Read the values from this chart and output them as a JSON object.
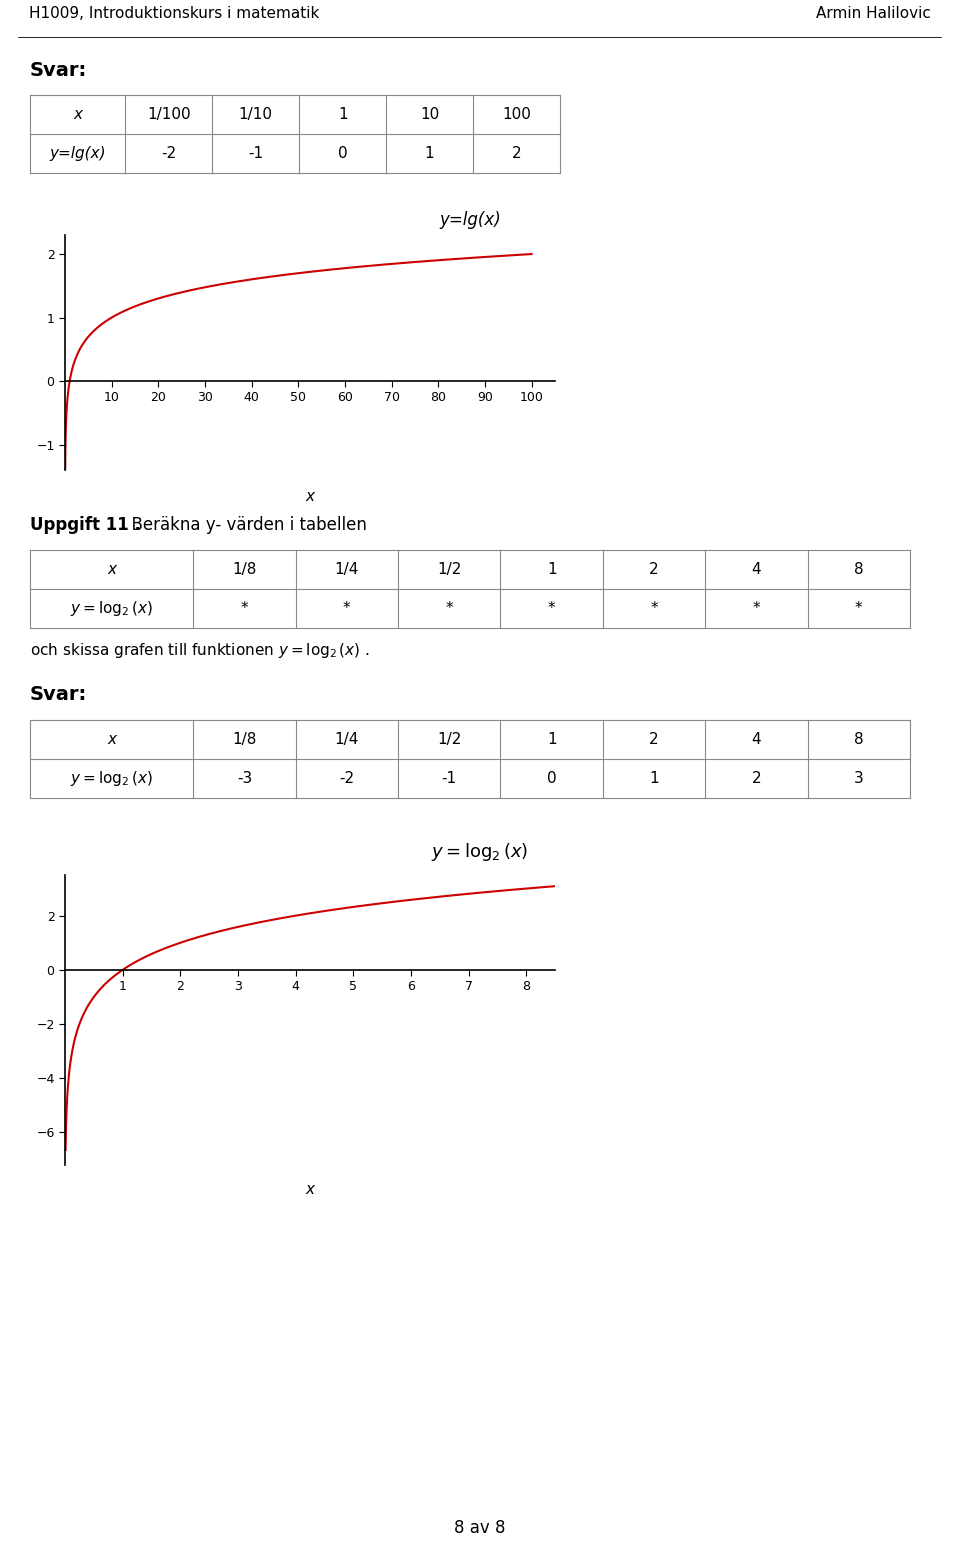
{
  "header_left": "H1009, Introduktionskurs i matematik",
  "header_right": "Armin Halilovic",
  "footer_text": "8 av 8",
  "svar1_label": "Svar:",
  "table1_x_label": "x",
  "table1_y_label": "y=lg(x)",
  "table1_x_values": [
    "1/100",
    "1/10",
    "1",
    "10",
    "100"
  ],
  "table1_y_values": [
    "-2",
    "-1",
    "0",
    "1",
    "2"
  ],
  "plot1_title": "y=lg(x)",
  "plot1_xlabel": "x",
  "plot1_xlim": [
    0,
    105
  ],
  "plot1_ylim": [
    -1.4,
    2.3
  ],
  "plot1_xticks": [
    10,
    20,
    30,
    40,
    50,
    60,
    70,
    80,
    90,
    100
  ],
  "plot1_yticks": [
    -1,
    0,
    1,
    2
  ],
  "plot1_color": "#cc0000",
  "uppgift_label": "Uppgift 11 .",
  "uppgift_text": "  Beräkna y- värden i tabellen",
  "table2_x_label": "x",
  "table2_x_values": [
    "1/8",
    "1/4",
    "1/2",
    "1",
    "2",
    "4",
    "8"
  ],
  "table2_y_values": [
    "*",
    "*",
    "*",
    "*",
    "*",
    "*",
    "*"
  ],
  "table2_footer": "och skissa grafen till funktionen y = log₂(x) .",
  "svar2_label": "Svar:",
  "table3_x_label": "x",
  "table3_x_values": [
    "1/8",
    "1/4",
    "1/2",
    "1",
    "2",
    "4",
    "8"
  ],
  "table3_y_values": [
    "-3",
    "-2",
    "-1",
    "0",
    "1",
    "2",
    "3"
  ],
  "plot2_title": "y = log₂(x)",
  "plot2_xlabel": "x",
  "plot2_xlim": [
    0,
    8.5
  ],
  "plot2_ylim": [
    -7.2,
    3.5
  ],
  "plot2_xticks": [
    1,
    2,
    3,
    4,
    5,
    6,
    7,
    8
  ],
  "plot2_yticks": [
    -6,
    -4,
    -2,
    0,
    2
  ],
  "plot2_color": "#cc0000",
  "bg_color": "#ffffff",
  "text_color": "#000000",
  "line_color": "#000000",
  "table_line_color": "#888888"
}
